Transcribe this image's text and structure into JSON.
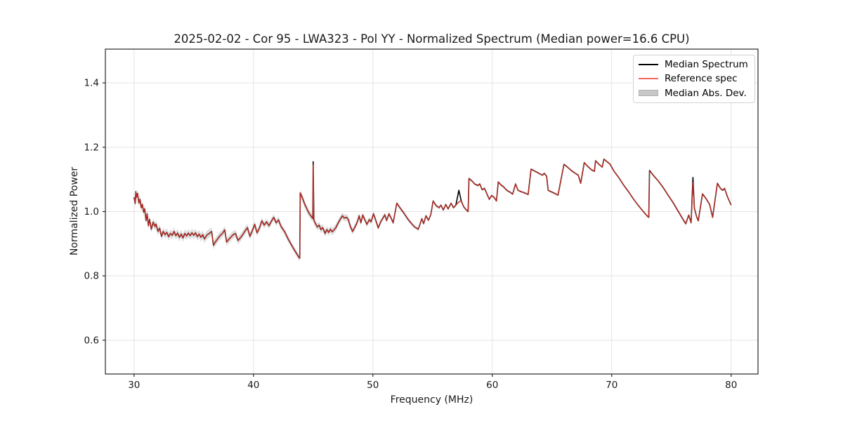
{
  "chart_data": {
    "type": "line",
    "title": "2025-02-02 - Cor 95 - LWA323 - Pol YY - Normalized Spectrum (Median power=16.6 CPU)",
    "xlabel": "Frequency (MHz)",
    "ylabel": "Normalized Power",
    "xlim": [
      27.6,
      82.25
    ],
    "ylim": [
      0.495,
      1.505
    ],
    "xticks": [
      [
        30,
        "30"
      ],
      [
        40,
        "40"
      ],
      [
        50,
        "50"
      ],
      [
        60,
        "60"
      ],
      [
        70,
        "70"
      ],
      [
        80,
        "80"
      ]
    ],
    "yticks": [
      [
        0.6,
        "0.6"
      ],
      [
        0.8,
        "0.8"
      ],
      [
        1.0,
        "1.0"
      ],
      [
        1.2,
        "1.2"
      ],
      [
        1.4,
        "1.4"
      ]
    ],
    "grid": true,
    "colors": {
      "grid": "#e3e3e3",
      "spine": "#262626",
      "tick_text": "#1a1a1a",
      "median": "#000000",
      "reference": "#cf2b22",
      "reference_legend": "#f1655d",
      "band": "#bdbdbd"
    },
    "legend": {
      "position": "upper right",
      "entries": [
        {
          "label": "Median Spectrum",
          "type": "line",
          "color": "#000000"
        },
        {
          "label": "Reference spec",
          "type": "line",
          "color": "#f1655d"
        },
        {
          "label": "Median Abs. Dev.",
          "type": "patch",
          "color": "#c8c8c8"
        }
      ]
    },
    "series": [
      {
        "name": "Reference spec",
        "role": "reference",
        "color": "#cf2b22",
        "linewidth": 1.15,
        "points": [
          [
            30.0,
            1.044
          ],
          [
            30.1,
            1.025
          ],
          [
            30.15,
            1.062
          ],
          [
            30.2,
            1.045
          ],
          [
            30.3,
            1.056
          ],
          [
            30.4,
            1.027
          ],
          [
            30.5,
            1.038
          ],
          [
            30.6,
            1.012
          ],
          [
            30.7,
            1.022
          ],
          [
            30.8,
            0.998
          ],
          [
            30.9,
            1.008
          ],
          [
            31.0,
            0.972
          ],
          [
            31.1,
            0.993
          ],
          [
            31.2,
            0.956
          ],
          [
            31.3,
            0.976
          ],
          [
            31.45,
            0.945
          ],
          [
            31.6,
            0.967
          ],
          [
            31.75,
            0.954
          ],
          [
            31.85,
            0.961
          ],
          [
            32.0,
            0.938
          ],
          [
            32.15,
            0.948
          ],
          [
            32.3,
            0.923
          ],
          [
            32.45,
            0.938
          ],
          [
            32.6,
            0.928
          ],
          [
            32.75,
            0.935
          ],
          [
            32.9,
            0.922
          ],
          [
            33.05,
            0.932
          ],
          [
            33.2,
            0.926
          ],
          [
            33.35,
            0.938
          ],
          [
            33.5,
            0.925
          ],
          [
            33.65,
            0.933
          ],
          [
            33.8,
            0.92
          ],
          [
            33.95,
            0.93
          ],
          [
            34.1,
            0.918
          ],
          [
            34.25,
            0.932
          ],
          [
            34.4,
            0.924
          ],
          [
            34.55,
            0.933
          ],
          [
            34.7,
            0.925
          ],
          [
            34.85,
            0.934
          ],
          [
            35.0,
            0.926
          ],
          [
            35.15,
            0.934
          ],
          [
            35.3,
            0.922
          ],
          [
            35.45,
            0.93
          ],
          [
            35.6,
            0.92
          ],
          [
            35.75,
            0.928
          ],
          [
            35.9,
            0.915
          ],
          [
            36.1,
            0.927
          ],
          [
            36.3,
            0.932
          ],
          [
            36.5,
            0.938
          ],
          [
            36.65,
            0.895
          ],
          [
            36.8,
            0.905
          ],
          [
            37.0,
            0.915
          ],
          [
            37.2,
            0.925
          ],
          [
            37.4,
            0.932
          ],
          [
            37.6,
            0.943
          ],
          [
            37.75,
            0.905
          ],
          [
            37.9,
            0.912
          ],
          [
            38.1,
            0.92
          ],
          [
            38.3,
            0.928
          ],
          [
            38.5,
            0.932
          ],
          [
            38.7,
            0.91
          ],
          [
            38.9,
            0.918
          ],
          [
            39.1,
            0.928
          ],
          [
            39.3,
            0.94
          ],
          [
            39.5,
            0.95
          ],
          [
            39.7,
            0.923
          ],
          [
            39.9,
            0.94
          ],
          [
            40.1,
            0.96
          ],
          [
            40.3,
            0.934
          ],
          [
            40.5,
            0.948
          ],
          [
            40.7,
            0.971
          ],
          [
            40.9,
            0.958
          ],
          [
            41.1,
            0.968
          ],
          [
            41.3,
            0.956
          ],
          [
            41.5,
            0.97
          ],
          [
            41.7,
            0.982
          ],
          [
            41.9,
            0.965
          ],
          [
            42.1,
            0.974
          ],
          [
            42.3,
            0.954
          ],
          [
            42.6,
            0.938
          ],
          [
            42.9,
            0.915
          ],
          [
            43.2,
            0.895
          ],
          [
            43.5,
            0.876
          ],
          [
            43.8,
            0.858
          ],
          [
            43.88,
            0.855
          ],
          [
            43.92,
            1.058
          ],
          [
            44.1,
            1.042
          ],
          [
            44.3,
            1.022
          ],
          [
            44.5,
            1.006
          ],
          [
            44.7,
            0.992
          ],
          [
            44.9,
            0.982
          ],
          [
            44.97,
            0.978
          ],
          [
            45.0,
            1.145
          ],
          [
            45.06,
            0.972
          ],
          [
            45.2,
            0.962
          ],
          [
            45.35,
            0.952
          ],
          [
            45.5,
            0.958
          ],
          [
            45.65,
            0.944
          ],
          [
            45.8,
            0.95
          ],
          [
            46.0,
            0.932
          ],
          [
            46.15,
            0.944
          ],
          [
            46.3,
            0.935
          ],
          [
            46.45,
            0.945
          ],
          [
            46.6,
            0.937
          ],
          [
            46.75,
            0.943
          ],
          [
            46.9,
            0.95
          ],
          [
            47.1,
            0.965
          ],
          [
            47.3,
            0.978
          ],
          [
            47.45,
            0.987
          ],
          [
            47.6,
            0.98
          ],
          [
            47.8,
            0.982
          ],
          [
            47.95,
            0.975
          ],
          [
            48.1,
            0.955
          ],
          [
            48.3,
            0.938
          ],
          [
            48.5,
            0.952
          ],
          [
            48.7,
            0.968
          ],
          [
            48.85,
            0.987
          ],
          [
            49.0,
            0.965
          ],
          [
            49.15,
            0.989
          ],
          [
            49.35,
            0.973
          ],
          [
            49.5,
            0.96
          ],
          [
            49.7,
            0.975
          ],
          [
            49.85,
            0.968
          ],
          [
            50.05,
            0.993
          ],
          [
            50.25,
            0.972
          ],
          [
            50.45,
            0.949
          ],
          [
            50.65,
            0.968
          ],
          [
            50.85,
            0.98
          ],
          [
            51.0,
            0.99
          ],
          [
            51.15,
            0.972
          ],
          [
            51.35,
            0.993
          ],
          [
            51.55,
            0.978
          ],
          [
            51.7,
            0.965
          ],
          [
            52.0,
            1.026
          ],
          [
            52.3,
            1.01
          ],
          [
            52.6,
            0.995
          ],
          [
            52.9,
            0.978
          ],
          [
            53.2,
            0.964
          ],
          [
            53.5,
            0.952
          ],
          [
            53.8,
            0.945
          ],
          [
            54.1,
            0.978
          ],
          [
            54.25,
            0.962
          ],
          [
            54.45,
            0.987
          ],
          [
            54.65,
            0.973
          ],
          [
            54.85,
            0.99
          ],
          [
            55.05,
            1.033
          ],
          [
            55.3,
            1.018
          ],
          [
            55.55,
            1.012
          ],
          [
            55.7,
            1.02
          ],
          [
            55.9,
            1.005
          ],
          [
            56.1,
            1.022
          ],
          [
            56.3,
            1.008
          ],
          [
            56.55,
            1.026
          ],
          [
            56.75,
            1.012
          ],
          [
            56.95,
            1.02
          ],
          [
            57.2,
            1.03
          ],
          [
            57.4,
            1.033
          ],
          [
            57.6,
            1.015
          ],
          [
            57.8,
            1.006
          ],
          [
            57.98,
            1.0
          ],
          [
            58.05,
            1.103
          ],
          [
            58.3,
            1.095
          ],
          [
            58.55,
            1.085
          ],
          [
            58.8,
            1.081
          ],
          [
            58.95,
            1.086
          ],
          [
            59.15,
            1.068
          ],
          [
            59.35,
            1.072
          ],
          [
            59.55,
            1.055
          ],
          [
            59.75,
            1.038
          ],
          [
            59.95,
            1.05
          ],
          [
            60.15,
            1.044
          ],
          [
            60.35,
            1.033
          ],
          [
            60.5,
            1.092
          ],
          [
            60.75,
            1.082
          ],
          [
            60.95,
            1.077
          ],
          [
            61.1,
            1.07
          ],
          [
            61.3,
            1.064
          ],
          [
            61.5,
            1.06
          ],
          [
            61.7,
            1.054
          ],
          [
            61.95,
            1.086
          ],
          [
            62.15,
            1.066
          ],
          [
            62.4,
            1.062
          ],
          [
            62.7,
            1.058
          ],
          [
            63.0,
            1.053
          ],
          [
            63.25,
            1.132
          ],
          [
            63.5,
            1.127
          ],
          [
            63.75,
            1.122
          ],
          [
            64.0,
            1.117
          ],
          [
            64.2,
            1.113
          ],
          [
            64.35,
            1.119
          ],
          [
            64.55,
            1.11
          ],
          [
            64.68,
            1.066
          ],
          [
            64.9,
            1.062
          ],
          [
            65.2,
            1.057
          ],
          [
            65.5,
            1.051
          ],
          [
            66.0,
            1.147
          ],
          [
            66.3,
            1.138
          ],
          [
            66.6,
            1.128
          ],
          [
            66.9,
            1.12
          ],
          [
            67.2,
            1.113
          ],
          [
            67.4,
            1.088
          ],
          [
            67.7,
            1.152
          ],
          [
            68.0,
            1.14
          ],
          [
            68.3,
            1.13
          ],
          [
            68.55,
            1.125
          ],
          [
            68.65,
            1.158
          ],
          [
            68.9,
            1.148
          ],
          [
            69.2,
            1.138
          ],
          [
            69.35,
            1.163
          ],
          [
            69.6,
            1.155
          ],
          [
            69.85,
            1.148
          ],
          [
            70.2,
            1.125
          ],
          [
            70.6,
            1.105
          ],
          [
            71.0,
            1.082
          ],
          [
            71.4,
            1.062
          ],
          [
            71.8,
            1.04
          ],
          [
            72.2,
            1.02
          ],
          [
            72.6,
            1.002
          ],
          [
            73.0,
            0.985
          ],
          [
            73.1,
            0.982
          ],
          [
            73.17,
            1.128
          ],
          [
            73.5,
            1.112
          ],
          [
            73.9,
            1.095
          ],
          [
            74.3,
            1.075
          ],
          [
            74.7,
            1.052
          ],
          [
            75.1,
            1.03
          ],
          [
            75.5,
            1.005
          ],
          [
            75.9,
            0.98
          ],
          [
            76.2,
            0.962
          ],
          [
            76.45,
            0.989
          ],
          [
            76.65,
            0.965
          ],
          [
            76.8,
            1.09
          ],
          [
            76.92,
            1.011
          ],
          [
            77.1,
            0.985
          ],
          [
            77.25,
            0.971
          ],
          [
            77.6,
            1.055
          ],
          [
            77.9,
            1.04
          ],
          [
            78.2,
            1.022
          ],
          [
            78.45,
            0.982
          ],
          [
            78.85,
            1.088
          ],
          [
            79.1,
            1.072
          ],
          [
            79.3,
            1.066
          ],
          [
            79.45,
            1.072
          ],
          [
            79.7,
            1.045
          ],
          [
            80.0,
            1.02
          ]
        ]
      },
      {
        "name": "Median Spectrum",
        "role": "median",
        "color": "#000000",
        "linewidth": 1.6,
        "derived_from": "reference",
        "overrides": {
          "45": 1.155,
          "57.2": 1.066,
          "76.8": 1.106
        }
      },
      {
        "name": "Median Abs. Dev.",
        "role": "band",
        "color": "#bdbdbd",
        "opacity": 0.5,
        "dev_breakpoints": [
          [
            30,
            0.012
          ],
          [
            36,
            0.013
          ],
          [
            40,
            0.011
          ],
          [
            43.5,
            0.009
          ],
          [
            44.2,
            0.011
          ],
          [
            47,
            0.011
          ],
          [
            50,
            0.008
          ],
          [
            52,
            0.006
          ],
          [
            54,
            0.005
          ],
          [
            57,
            0.004
          ],
          [
            60,
            0.0035
          ],
          [
            64,
            0.003
          ],
          [
            68,
            0.003
          ],
          [
            71,
            0.0025
          ],
          [
            74,
            0.003
          ],
          [
            76,
            0.005
          ],
          [
            77.5,
            0.004
          ],
          [
            80,
            0.004
          ]
        ]
      }
    ]
  }
}
